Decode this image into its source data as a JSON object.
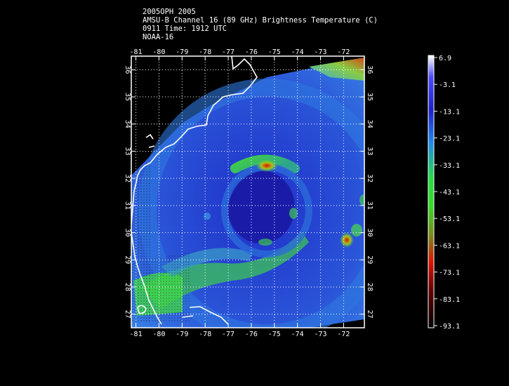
{
  "header": {
    "storm": "2005OPH 2005",
    "product": "AMSU-B Channel 16 (89 GHz) Brightness Temperature (C)",
    "time": "0911 Time: 1912 UTC",
    "satellite": "NOAA-16"
  },
  "map": {
    "lon_labels": [
      "-81",
      "-80",
      "-79",
      "-78",
      "-77",
      "-76",
      "-75",
      "-74",
      "-73",
      "-72"
    ],
    "lon_values": [
      -81,
      -80,
      -79,
      -78,
      -77,
      -76,
      -75,
      -74,
      -73,
      -72
    ],
    "lat_labels": [
      "36",
      "35",
      "34",
      "33",
      "32",
      "31",
      "30",
      "29",
      "28",
      "27"
    ],
    "lat_values": [
      36,
      35,
      34,
      33,
      32,
      31,
      30,
      29,
      28,
      27
    ],
    "extent": {
      "lon_min": -81.2,
      "lon_max": -71.1,
      "lat_min": 26.5,
      "lat_max": 36.5
    }
  },
  "colorbar": {
    "labels": [
      "6.9",
      "-3.1",
      "-13.1",
      "-23.1",
      "-33.1",
      "-43.1",
      "-53.1",
      "-63.1",
      "-73.1",
      "-83.1",
      "-93.1"
    ],
    "min": -93.1,
    "max": 6.9,
    "colors": {
      "warm": "#ffffff",
      "cold_blue": "#2233dd",
      "mid_blue": "#2288ee",
      "green": "#33dd22",
      "red": "#dd1100",
      "darkest": "#000000"
    }
  }
}
